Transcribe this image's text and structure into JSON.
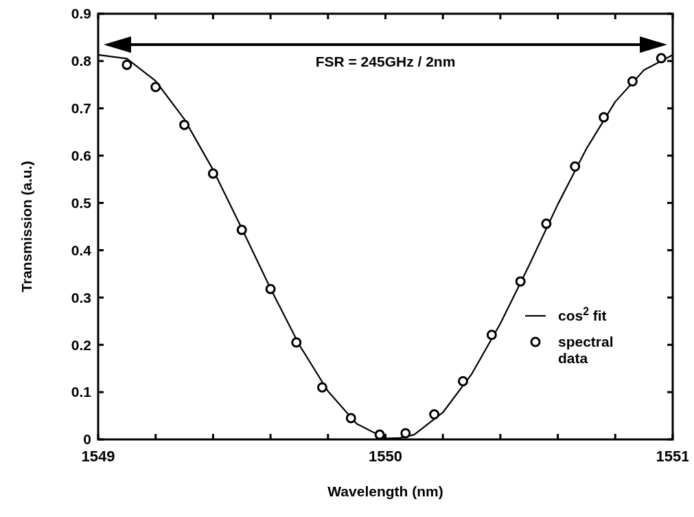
{
  "chart_data": {
    "type": "scatter",
    "xlabel": "Wavelength (nm)",
    "ylabel": "Transmission (a.u.)",
    "xlim": [
      1549,
      1551
    ],
    "ylim": [
      0,
      0.9
    ],
    "xticks": [
      1549,
      {
        "value": 1549.2,
        "label": null
      },
      {
        "value": 1549.4,
        "label": null
      },
      {
        "value": 1549.6,
        "label": null
      },
      {
        "value": 1549.8,
        "label": null
      },
      1550,
      {
        "value": 1550.2,
        "label": null
      },
      {
        "value": 1550.4,
        "label": null
      },
      {
        "value": 1550.6,
        "label": null
      },
      {
        "value": 1550.8,
        "label": null
      },
      1551
    ],
    "yticks": [
      0,
      0.1,
      0.2,
      0.3,
      0.4,
      0.5,
      0.6,
      0.7,
      0.8,
      0.9
    ],
    "annotations": [
      "FSR = 245GHz / 2nm"
    ],
    "legend": "bottom right",
    "grid": false,
    "series": [
      {
        "name": "cos$^{2}$ fit",
        "type": "line",
        "color": "#000000",
        "marker": "none",
        "line_style": "solid",
        "x": [
          1549,
          1549.1,
          1549.2,
          1549.3,
          1549.4,
          1549.5,
          1549.6,
          1549.7,
          1549.8,
          1549.9,
          1550,
          1550.05,
          1550.1,
          1550.2,
          1550.3,
          1550.4,
          1550.5,
          1550.6,
          1550.7,
          1550.8,
          1550.9,
          1551
        ],
        "values": [
          0.813,
          0.805,
          0.758,
          0.677,
          0.57,
          0.446,
          0.319,
          0.2,
          0.102,
          0.033,
          0.002,
          0.003,
          0.01,
          0.057,
          0.138,
          0.245,
          0.368,
          0.497,
          0.615,
          0.714,
          0.781,
          0.813
        ]
      },
      {
        "name": "spectral data",
        "color": "#000000",
        "marker": "circle",
        "x": [
          1549.1,
          1549.2,
          1549.3,
          1549.4,
          1549.5,
          1549.6,
          1549.69,
          1549.78,
          1549.88,
          1549.98,
          1550.07,
          1550.17,
          1550.27,
          1550.37,
          1550.47,
          1550.56,
          1550.66,
          1550.76,
          1550.86,
          1550.96
        ],
        "values": [
          0.792,
          0.745,
          0.665,
          0.562,
          0.443,
          0.318,
          0.205,
          0.11,
          0.045,
          0.01,
          0.013,
          0.053,
          0.123,
          0.221,
          0.334,
          0.456,
          0.577,
          0.681,
          0.757,
          0.806
        ]
      }
    ]
  }
}
